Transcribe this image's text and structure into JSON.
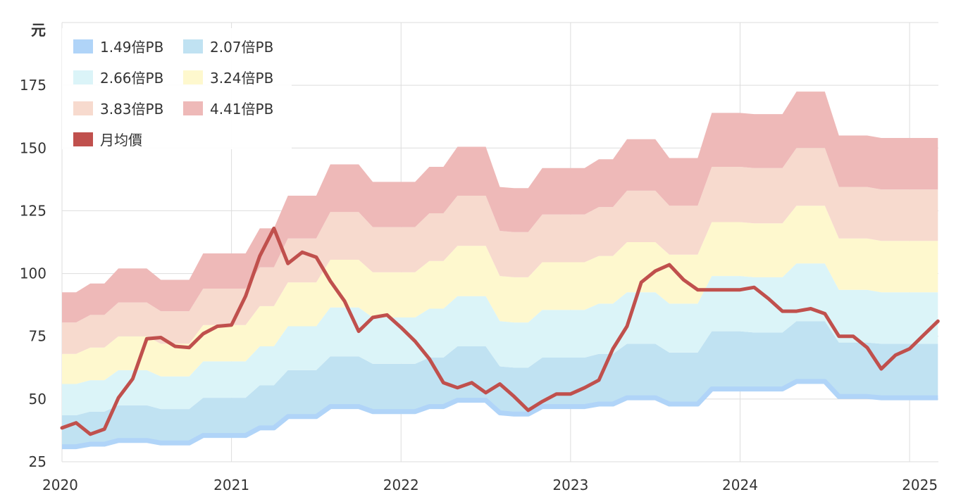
{
  "chart_data": {
    "type": "area",
    "ylabel": "元",
    "y_ticks": [
      25,
      50,
      75,
      100,
      125,
      150,
      175
    ],
    "ylim": [
      25,
      200
    ],
    "x_ticks": [
      "2020",
      "2021",
      "2022",
      "2023",
      "2024",
      "2025"
    ],
    "xlim": [
      2020.0,
      2025.17
    ],
    "grid": true,
    "legend_position": "top-left",
    "colors": {
      "band_1": "#B0D4F8",
      "band_2": "#C0E2F2",
      "band_3": "#DBF4F8",
      "band_4": "#FEF8CE",
      "band_5": "#F7DACE",
      "band_6": "#EEB9B8",
      "price": "#C0504D",
      "grid": "#DDDDDD"
    },
    "legend": [
      {
        "label": "1.49倍PB",
        "color": "#B0D4F8"
      },
      {
        "label": "2.07倍PB",
        "color": "#C0E2F2"
      },
      {
        "label": "2.66倍PB",
        "color": "#DBF4F8"
      },
      {
        "label": "3.24倍PB",
        "color": "#FEF8CE"
      },
      {
        "label": "3.83倍PB",
        "color": "#F7DACE"
      },
      {
        "label": "4.41倍PB",
        "color": "#EEB9B8"
      },
      {
        "label": "月均價",
        "color": "#C0504D"
      }
    ],
    "x": [
      2020.0,
      2020.083,
      2020.167,
      2020.25,
      2020.333,
      2020.417,
      2020.5,
      2020.583,
      2020.667,
      2020.75,
      2020.833,
      2020.917,
      2021.0,
      2021.083,
      2021.167,
      2021.25,
      2021.333,
      2021.417,
      2021.5,
      2021.583,
      2021.667,
      2021.75,
      2021.833,
      2021.917,
      2022.0,
      2022.083,
      2022.167,
      2022.25,
      2022.333,
      2022.417,
      2022.5,
      2022.583,
      2022.667,
      2022.75,
      2022.833,
      2022.917,
      2023.0,
      2023.083,
      2023.167,
      2023.25,
      2023.333,
      2023.417,
      2023.5,
      2023.583,
      2023.667,
      2023.75,
      2023.833,
      2023.917,
      2024.0,
      2024.083,
      2024.167,
      2024.25,
      2024.333,
      2024.417,
      2024.5,
      2024.583,
      2024.667,
      2024.75,
      2024.833,
      2024.917,
      2025.0,
      2025.083,
      2025.167
    ],
    "series": [
      {
        "name": "1.49倍PB",
        "values": [
          31.0,
          31.0,
          32.0,
          32.0,
          33.5,
          33.5,
          33.5,
          32.5,
          32.5,
          32.5,
          35.5,
          35.5,
          35.5,
          35.5,
          38.5,
          38.5,
          43.0,
          43.0,
          43.0,
          47.0,
          47.0,
          47.0,
          45.0,
          45.0,
          45.0,
          45.0,
          47.0,
          47.0,
          49.5,
          49.5,
          49.5,
          44.5,
          44.0,
          44.0,
          47.0,
          47.0,
          47.0,
          47.0,
          48.0,
          48.0,
          50.5,
          50.5,
          50.5,
          48.0,
          48.0,
          48.0,
          54.0,
          54.0,
          54.0,
          54.0,
          54.0,
          54.0,
          57.0,
          57.0,
          57.0,
          51.0,
          51.0,
          51.0,
          50.5,
          50.5,
          50.5,
          50.5,
          50.5
        ]
      },
      {
        "name": "2.07倍PB",
        "values": [
          43.5,
          43.5,
          45.0,
          45.0,
          47.5,
          47.5,
          47.5,
          46.0,
          46.0,
          46.0,
          50.5,
          50.5,
          50.5,
          50.5,
          55.5,
          55.5,
          61.5,
          61.5,
          61.5,
          67.0,
          67.0,
          67.0,
          64.0,
          64.0,
          64.0,
          64.0,
          66.5,
          66.5,
          71.0,
          71.0,
          71.0,
          63.0,
          62.5,
          62.5,
          66.5,
          66.5,
          66.5,
          66.5,
          68.0,
          68.0,
          72.0,
          72.0,
          72.0,
          68.5,
          68.5,
          68.5,
          77.0,
          77.0,
          77.0,
          76.5,
          76.5,
          76.5,
          81.0,
          81.0,
          81.0,
          72.5,
          72.5,
          72.5,
          72.0,
          72.0,
          72.0,
          72.0,
          72.0
        ]
      },
      {
        "name": "2.66倍PB",
        "values": [
          56.0,
          56.0,
          57.5,
          57.5,
          61.5,
          61.5,
          61.5,
          59.0,
          59.0,
          59.0,
          65.0,
          65.0,
          65.0,
          65.0,
          71.0,
          71.0,
          79.0,
          79.0,
          79.0,
          86.5,
          86.5,
          86.5,
          82.5,
          82.5,
          82.5,
          82.5,
          86.0,
          86.0,
          91.0,
          91.0,
          91.0,
          81.0,
          80.5,
          80.5,
          85.5,
          85.5,
          85.5,
          85.5,
          88.0,
          88.0,
          92.5,
          92.5,
          92.5,
          88.0,
          88.0,
          88.0,
          99.0,
          99.0,
          99.0,
          98.5,
          98.5,
          98.5,
          104.0,
          104.0,
          104.0,
          93.5,
          93.5,
          93.5,
          92.5,
          92.5,
          92.5,
          92.5,
          92.5
        ]
      },
      {
        "name": "3.24倍PB",
        "values": [
          68.0,
          68.0,
          70.5,
          70.5,
          75.0,
          75.0,
          75.0,
          72.0,
          72.0,
          72.0,
          79.5,
          79.5,
          79.5,
          79.5,
          87.0,
          87.0,
          96.5,
          96.5,
          96.5,
          105.5,
          105.5,
          105.5,
          100.5,
          100.5,
          100.5,
          100.5,
          105.0,
          105.0,
          111.0,
          111.0,
          111.0,
          99.0,
          98.5,
          98.5,
          104.5,
          104.5,
          104.5,
          104.5,
          107.0,
          107.0,
          112.5,
          112.5,
          112.5,
          107.5,
          107.5,
          107.5,
          120.5,
          120.5,
          120.5,
          120.0,
          120.0,
          120.0,
          127.0,
          127.0,
          127.0,
          114.0,
          114.0,
          114.0,
          113.0,
          113.0,
          113.0,
          113.0,
          113.0
        ]
      },
      {
        "name": "3.83倍PB",
        "values": [
          80.5,
          80.5,
          83.5,
          83.5,
          88.5,
          88.5,
          88.5,
          85.0,
          85.0,
          85.0,
          94.0,
          94.0,
          94.0,
          94.0,
          102.5,
          102.5,
          114.0,
          114.0,
          114.0,
          124.5,
          124.5,
          124.5,
          118.5,
          118.5,
          118.5,
          118.5,
          124.0,
          124.0,
          131.0,
          131.0,
          131.0,
          117.0,
          116.5,
          116.5,
          123.5,
          123.5,
          123.5,
          123.5,
          126.5,
          126.5,
          133.0,
          133.0,
          133.0,
          127.0,
          127.0,
          127.0,
          142.5,
          142.5,
          142.5,
          142.0,
          142.0,
          142.0,
          150.0,
          150.0,
          150.0,
          134.5,
          134.5,
          134.5,
          133.5,
          133.5,
          133.5,
          133.5,
          133.5
        ]
      },
      {
        "name": "4.41倍PB",
        "values": [
          92.5,
          92.5,
          96.0,
          96.0,
          102.0,
          102.0,
          102.0,
          97.5,
          97.5,
          97.5,
          108.0,
          108.0,
          108.0,
          108.0,
          118.0,
          118.0,
          131.0,
          131.0,
          131.0,
          143.5,
          143.5,
          143.5,
          136.5,
          136.5,
          136.5,
          136.5,
          142.5,
          142.5,
          150.5,
          150.5,
          150.5,
          134.5,
          134.0,
          134.0,
          142.0,
          142.0,
          142.0,
          142.0,
          145.5,
          145.5,
          153.5,
          153.5,
          153.5,
          146.0,
          146.0,
          146.0,
          164.0,
          164.0,
          164.0,
          163.5,
          163.5,
          163.5,
          172.5,
          172.5,
          172.5,
          155.0,
          155.0,
          155.0,
          154.0,
          154.0,
          154.0,
          154.0,
          154.0
        ]
      },
      {
        "name": "月均價",
        "values": [
          38.5,
          40.5,
          36.0,
          38.0,
          50.5,
          58.0,
          74.0,
          74.5,
          71.0,
          70.5,
          76.0,
          79.0,
          79.5,
          91.0,
          107.0,
          118.0,
          104.0,
          108.5,
          106.5,
          97.0,
          89.0,
          77.0,
          82.5,
          83.5,
          78.5,
          73.0,
          66.0,
          56.5,
          54.5,
          56.5,
          52.5,
          56.0,
          51.0,
          45.5,
          49.0,
          52.0,
          52.0,
          54.5,
          57.5,
          70.0,
          79.0,
          96.5,
          101.0,
          103.5,
          97.5,
          93.5,
          93.5,
          93.5,
          93.5,
          94.5,
          90.0,
          85.0,
          85.0,
          86.0,
          84.0,
          75.0,
          75.0,
          70.5,
          62.0,
          67.5,
          70.0,
          75.5,
          81.0
        ]
      }
    ]
  }
}
